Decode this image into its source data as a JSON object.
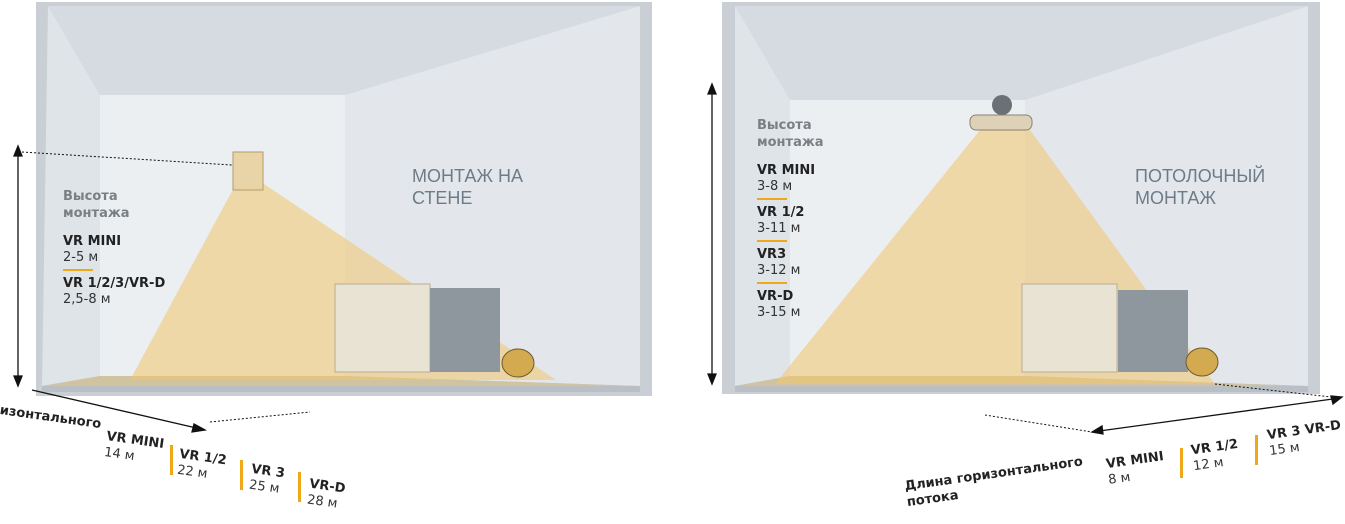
{
  "panels": [
    {
      "title": "МОНТАЖ НА СТЕНЕ",
      "height_label": "Высота монтажа",
      "heights": [
        {
          "model": "VR MINI",
          "value": "2-5 м"
        },
        {
          "model": "VR 1/2/3/VR-D",
          "value": "2,5-8 м"
        }
      ],
      "flow_label": "ризонтального",
      "flows": [
        {
          "model": "VR MINI",
          "value": "14 м"
        },
        {
          "model": "VR 1/2",
          "value": "22 м"
        },
        {
          "model": "VR 3",
          "value": "25 м"
        },
        {
          "model": "VR-D",
          "value": "28 м"
        }
      ]
    },
    {
      "title": "ПОТОЛОЧНЫЙ МОНТАЖ",
      "height_label": "Высота монтажа",
      "heights": [
        {
          "model": "VR MINI",
          "value": "3-8 м"
        },
        {
          "model": "VR 1/2",
          "value": "3-11 м"
        },
        {
          "model": "VR3",
          "value": "3-12 м"
        },
        {
          "model": "VR-D",
          "value": "3-15 м"
        }
      ],
      "flow_label": "Длина горизонтального потока",
      "flows": [
        {
          "model": "VR MINI",
          "value": "8 м"
        },
        {
          "model": "VR 1/2",
          "value": "12 м"
        },
        {
          "model": "VR 3 VR-D",
          "value": "15 м"
        }
      ]
    }
  ]
}
